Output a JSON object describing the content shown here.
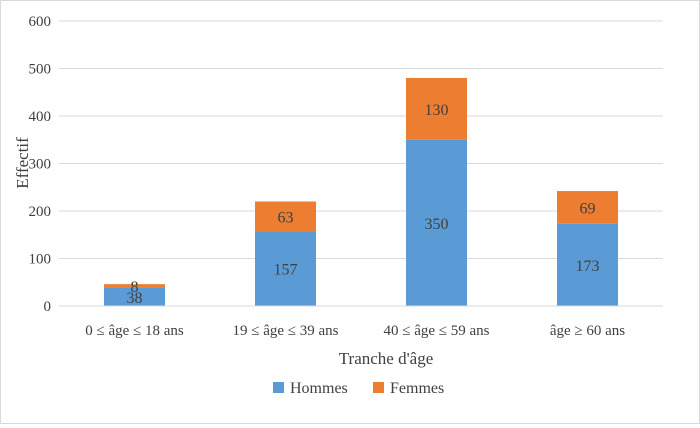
{
  "chart_data": {
    "type": "bar",
    "stacked": true,
    "categories": [
      "0 ≤ âge ≤ 18 ans",
      "19 ≤ âge ≤ 39 ans",
      "40 ≤ âge ≤ 59 ans",
      "âge ≥  60 ans"
    ],
    "series": [
      {
        "name": "Hommes",
        "values": [
          38,
          157,
          350,
          173
        ],
        "color": "#5b9bd5"
      },
      {
        "name": "Femmes",
        "values": [
          8,
          63,
          130,
          69
        ],
        "color": "#ed7d31"
      }
    ],
    "xlabel": "Tranche d'âge",
    "ylabel": "Effectif",
    "ylim": [
      0,
      600
    ],
    "yticks": [
      0,
      100,
      200,
      300,
      400,
      500,
      600
    ],
    "grid": true,
    "legend_position": "bottom",
    "data_label_color": "#404040"
  }
}
